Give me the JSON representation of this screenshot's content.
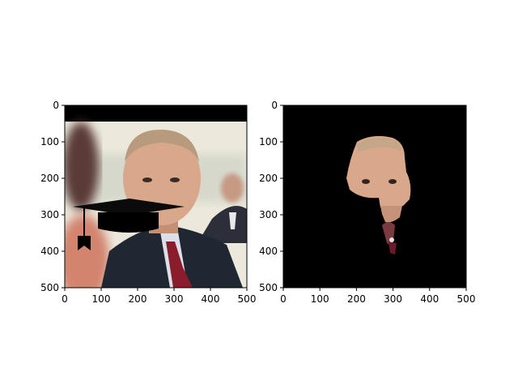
{
  "chart_data": [
    {
      "type": "image",
      "panel": "left",
      "xlim": [
        0,
        500
      ],
      "ylim": [
        500,
        0
      ],
      "xticks": [
        "0",
        "100",
        "200",
        "300",
        "400",
        "500"
      ],
      "yticks": [
        "0",
        "100",
        "200",
        "300",
        "400",
        "500"
      ],
      "grid": false,
      "content": "photo of a man in a dark suit and red patterned tie with a black graduation cap overlay"
    },
    {
      "type": "image",
      "panel": "right",
      "xlim": [
        0,
        500
      ],
      "ylim": [
        500,
        0
      ],
      "xticks": [
        "0",
        "100",
        "200",
        "300",
        "400",
        "500"
      ],
      "yticks": [
        "0",
        "100",
        "200",
        "300",
        "400",
        "500"
      ],
      "grid": false,
      "content": "segmentation mask keeping only the face region on a black background"
    }
  ],
  "colors": {
    "skin": "#d9a78a",
    "suit": "#1f2733",
    "tie": "#8a1c2c",
    "background": "#eceee4",
    "mask": "#000000"
  }
}
